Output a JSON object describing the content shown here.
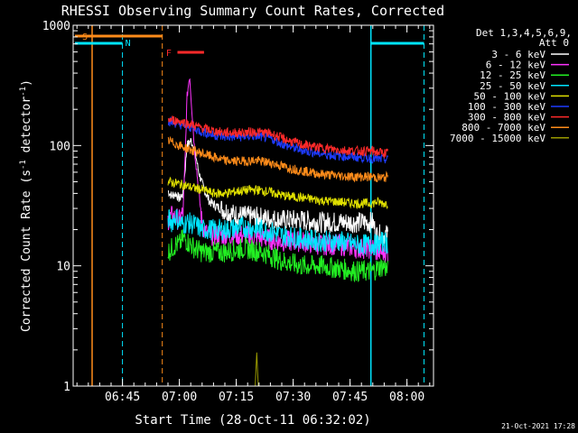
{
  "chart_data": {
    "type": "line",
    "title": "RHESSI Observing Summary Count Rates, Corrected",
    "xlabel": "Start Time (28-Oct-11 06:32:02)",
    "ylabel_main": "Corrected Count Rate (s",
    "ylabel_sup1": "-1",
    "ylabel_mid": " detector",
    "ylabel_sup2": "-1",
    "ylabel_end": ")",
    "y_scale": "log",
    "xlim_minutes": [
      0,
      95
    ],
    "ylim": [
      1,
      1000
    ],
    "x_ticks": [
      {
        "m": 13,
        "label": "06:45"
      },
      {
        "m": 28,
        "label": "07:00"
      },
      {
        "m": 43,
        "label": "07:15"
      },
      {
        "m": 58,
        "label": "07:30"
      },
      {
        "m": 73,
        "label": "07:45"
      },
      {
        "m": 88,
        "label": "08:00"
      }
    ],
    "y_ticks": [
      {
        "v": 1000,
        "label": "1000"
      },
      {
        "v": 100,
        "label": "100"
      },
      {
        "v": 10,
        "label": "10"
      },
      {
        "v": 1,
        "label": "1"
      }
    ],
    "legend": {
      "header1": "Det 1,3,4,5,6,9,",
      "header2": "Att 0",
      "placement": "right"
    },
    "series": [
      {
        "name": "3 - 6 keV",
        "color": "#ffffff",
        "points": [
          [
            25,
            42
          ],
          [
            26,
            38
          ],
          [
            27,
            40
          ],
          [
            28,
            36
          ],
          [
            29,
            40
          ],
          [
            30,
            100
          ],
          [
            31,
            110
          ],
          [
            32,
            95
          ],
          [
            33,
            62
          ],
          [
            34,
            48
          ],
          [
            35,
            40
          ],
          [
            36,
            34
          ],
          [
            38,
            31
          ],
          [
            40,
            29
          ],
          [
            42,
            27
          ],
          [
            45,
            26
          ],
          [
            50,
            25
          ],
          [
            55,
            24
          ],
          [
            60,
            24
          ],
          [
            65,
            23
          ],
          [
            70,
            23
          ],
          [
            75,
            23
          ],
          [
            79,
            23
          ],
          [
            80,
            18
          ],
          [
            82,
            18
          ],
          [
            83,
            18
          ]
        ]
      },
      {
        "name": "6 - 12 keV",
        "color": "#ff33ff",
        "points": [
          [
            25,
            24
          ],
          [
            26,
            26
          ],
          [
            27,
            25
          ],
          [
            28,
            24
          ],
          [
            29,
            28
          ],
          [
            29.5,
            75
          ],
          [
            30,
            250
          ],
          [
            30.7,
            390
          ],
          [
            31.3,
            200
          ],
          [
            32,
            95
          ],
          [
            33,
            45
          ],
          [
            34,
            22
          ],
          [
            35,
            19
          ],
          [
            36,
            18
          ],
          [
            40,
            18
          ],
          [
            45,
            18
          ],
          [
            50,
            17
          ],
          [
            55,
            16
          ],
          [
            60,
            16
          ],
          [
            65,
            15
          ],
          [
            70,
            15
          ],
          [
            75,
            14
          ],
          [
            79,
            14
          ],
          [
            80,
            13
          ],
          [
            82,
            13
          ],
          [
            83,
            13
          ]
        ]
      },
      {
        "name": "12 - 25 keV",
        "color": "#22ee22",
        "points": [
          [
            25,
            13
          ],
          [
            26,
            14
          ],
          [
            27,
            15
          ],
          [
            28,
            15
          ],
          [
            29,
            17
          ],
          [
            30,
            16
          ],
          [
            31,
            15
          ],
          [
            32,
            14
          ],
          [
            34,
            13
          ],
          [
            36,
            13
          ],
          [
            40,
            13
          ],
          [
            45,
            14
          ],
          [
            50,
            13
          ],
          [
            55,
            11
          ],
          [
            60,
            10
          ],
          [
            65,
            10
          ],
          [
            70,
            9.5
          ],
          [
            75,
            9
          ],
          [
            79,
            9
          ],
          [
            80,
            9.5
          ],
          [
            82,
            10
          ],
          [
            83,
            9
          ]
        ]
      },
      {
        "name": "25 - 50 keV",
        "color": "#00e5ff",
        "points": [
          [
            25,
            25
          ],
          [
            26,
            23
          ],
          [
            27,
            26
          ],
          [
            28,
            23
          ],
          [
            29,
            22
          ],
          [
            30,
            23
          ],
          [
            32,
            22
          ],
          [
            34,
            20
          ],
          [
            36,
            20
          ],
          [
            40,
            20
          ],
          [
            45,
            21
          ],
          [
            50,
            20
          ],
          [
            55,
            18
          ],
          [
            60,
            17
          ],
          [
            65,
            16
          ],
          [
            70,
            16
          ],
          [
            75,
            15
          ],
          [
            79,
            15
          ],
          [
            80,
            15
          ],
          [
            82,
            16
          ],
          [
            83,
            15
          ]
        ]
      },
      {
        "name": "50 - 100 keV",
        "color": "#e0e000",
        "points": [
          [
            25,
            50
          ],
          [
            28,
            48
          ],
          [
            31,
            45
          ],
          [
            34,
            43
          ],
          [
            37,
            40
          ],
          [
            40,
            40
          ],
          [
            44,
            42
          ],
          [
            48,
            43
          ],
          [
            52,
            41
          ],
          [
            56,
            38
          ],
          [
            60,
            37
          ],
          [
            65,
            35
          ],
          [
            70,
            34
          ],
          [
            75,
            33
          ],
          [
            79,
            33
          ],
          [
            80,
            34
          ],
          [
            82,
            33
          ],
          [
            83,
            33
          ]
        ]
      },
      {
        "name": "100 - 300 keV",
        "color": "#1e3cff",
        "points": [
          [
            25,
            160
          ],
          [
            28,
            150
          ],
          [
            31,
            142
          ],
          [
            34,
            130
          ],
          [
            37,
            122
          ],
          [
            40,
            118
          ],
          [
            44,
            118
          ],
          [
            48,
            120
          ],
          [
            52,
            115
          ],
          [
            56,
            100
          ],
          [
            60,
            92
          ],
          [
            65,
            86
          ],
          [
            70,
            82
          ],
          [
            75,
            80
          ],
          [
            79,
            78
          ],
          [
            80,
            77
          ],
          [
            82,
            77
          ],
          [
            83,
            76
          ]
        ]
      },
      {
        "name": "300 - 800 keV",
        "color": "#ff2a2a",
        "points": [
          [
            25,
            165
          ],
          [
            28,
            160
          ],
          [
            31,
            150
          ],
          [
            34,
            140
          ],
          [
            37,
            132
          ],
          [
            40,
            128
          ],
          [
            44,
            128
          ],
          [
            48,
            130
          ],
          [
            52,
            126
          ],
          [
            56,
            112
          ],
          [
            60,
            102
          ],
          [
            65,
            96
          ],
          [
            70,
            92
          ],
          [
            75,
            90
          ],
          [
            79,
            90
          ],
          [
            80,
            88
          ],
          [
            82,
            87
          ],
          [
            83,
            86
          ]
        ]
      },
      {
        "name": "800 - 7000 keV",
        "color": "#ff8c1a",
        "points": [
          [
            25,
            110
          ],
          [
            28,
            100
          ],
          [
            31,
            92
          ],
          [
            34,
            86
          ],
          [
            37,
            80
          ],
          [
            40,
            75
          ],
          [
            44,
            74
          ],
          [
            48,
            75
          ],
          [
            52,
            72
          ],
          [
            56,
            66
          ],
          [
            60,
            62
          ],
          [
            65,
            58
          ],
          [
            70,
            56
          ],
          [
            75,
            55
          ],
          [
            79,
            55
          ],
          [
            80,
            54
          ],
          [
            82,
            54
          ],
          [
            83,
            55
          ]
        ]
      },
      {
        "name": "7000 - 15000 keV",
        "color": "#9a9a00",
        "points": [
          [
            48,
            1
          ],
          [
            48.4,
            1.9
          ],
          [
            48.8,
            1
          ]
        ]
      }
    ],
    "markers": {
      "S_label": "S",
      "N_label": "N",
      "F_label": "F"
    }
  },
  "footer": {
    "date": "21-Oct-2021 17:28"
  }
}
